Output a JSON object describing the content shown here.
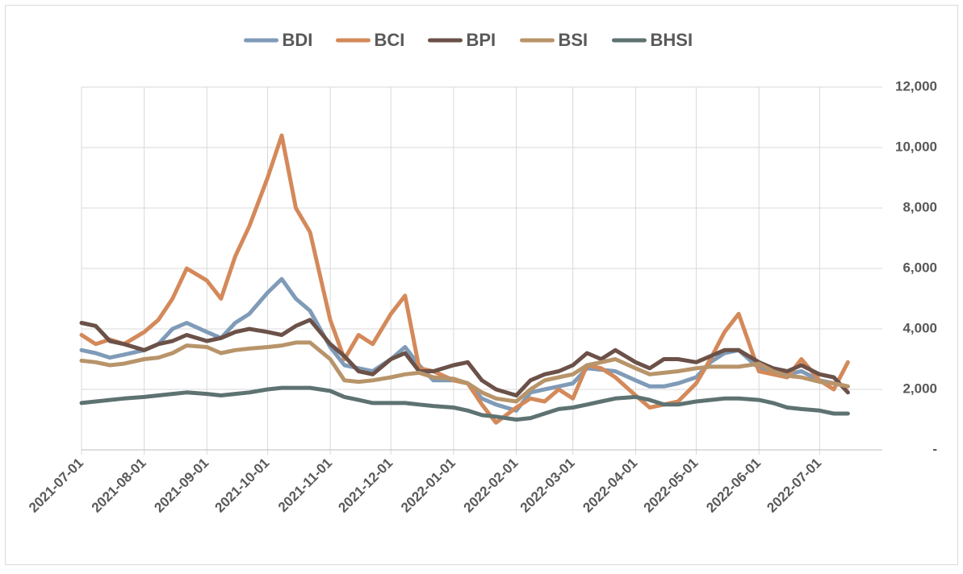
{
  "chart_data": {
    "type": "line",
    "x": [
      "2021-07-01",
      "2021-07-08",
      "2021-07-15",
      "2021-07-22",
      "2021-08-01",
      "2021-08-08",
      "2021-08-15",
      "2021-08-22",
      "2021-09-01",
      "2021-09-08",
      "2021-09-15",
      "2021-09-22",
      "2021-10-01",
      "2021-10-08",
      "2021-10-15",
      "2021-10-22",
      "2021-11-01",
      "2021-11-08",
      "2021-11-15",
      "2021-11-22",
      "2021-12-01",
      "2021-12-08",
      "2021-12-15",
      "2021-12-22",
      "2022-01-01",
      "2022-01-08",
      "2022-01-15",
      "2022-01-22",
      "2022-02-01",
      "2022-02-08",
      "2022-02-15",
      "2022-02-22",
      "2022-03-01",
      "2022-03-08",
      "2022-03-15",
      "2022-03-22",
      "2022-04-01",
      "2022-04-08",
      "2022-04-15",
      "2022-04-22",
      "2022-05-01",
      "2022-05-08",
      "2022-05-15",
      "2022-05-22",
      "2022-06-01",
      "2022-06-08",
      "2022-06-15",
      "2022-06-22",
      "2022-07-01",
      "2022-07-08",
      "2022-07-15"
    ],
    "series": [
      {
        "name": "BDI",
        "color": "#7f9bb8",
        "values": [
          3300,
          3200,
          3050,
          3150,
          3300,
          3500,
          4000,
          4200,
          3900,
          3700,
          4200,
          4500,
          5200,
          5650,
          5000,
          4600,
          3400,
          2800,
          2700,
          2600,
          3000,
          3400,
          2800,
          2300,
          2300,
          2200,
          1700,
          1500,
          1300,
          1900,
          2000,
          2100,
          2200,
          2700,
          2650,
          2600,
          2300,
          2100,
          2100,
          2200,
          2400,
          2900,
          3200,
          3300,
          2700,
          2600,
          2500,
          2600,
          2300,
          2200,
          2100
        ]
      },
      {
        "name": "BCI",
        "color": "#d4895a",
        "values": [
          3800,
          3500,
          3650,
          3500,
          3900,
          4300,
          5000,
          6000,
          5600,
          5000,
          6400,
          7400,
          9000,
          10400,
          8000,
          7200,
          4300,
          3000,
          3800,
          3500,
          4500,
          5100,
          2700,
          2600,
          2300,
          2200,
          1500,
          900,
          1400,
          1700,
          1600,
          2000,
          1700,
          2800,
          2700,
          2400,
          1800,
          1400,
          1500,
          1600,
          2200,
          3000,
          3900,
          4500,
          2600,
          2500,
          2400,
          3000,
          2300,
          2000,
          2900
        ]
      },
      {
        "name": "BPI",
        "color": "#6b5148",
        "values": [
          4200,
          4100,
          3600,
          3500,
          3300,
          3500,
          3600,
          3800,
          3600,
          3700,
          3900,
          4000,
          3900,
          3800,
          4100,
          4300,
          3500,
          3100,
          2600,
          2500,
          3000,
          3200,
          2600,
          2600,
          2800,
          2900,
          2300,
          2000,
          1800,
          2300,
          2500,
          2600,
          2800,
          3200,
          3000,
          3300,
          2900,
          2700,
          3000,
          3000,
          2900,
          3100,
          3300,
          3300,
          2900,
          2700,
          2600,
          2800,
          2500,
          2400,
          1900
        ]
      },
      {
        "name": "BSI",
        "color": "#b8946a",
        "values": [
          2950,
          2900,
          2800,
          2850,
          3000,
          3050,
          3200,
          3450,
          3400,
          3200,
          3300,
          3350,
          3400,
          3450,
          3550,
          3550,
          3000,
          2300,
          2250,
          2300,
          2400,
          2500,
          2550,
          2400,
          2350,
          2200,
          1900,
          1700,
          1600,
          2000,
          2300,
          2400,
          2500,
          2800,
          2900,
          3000,
          2700,
          2500,
          2550,
          2600,
          2700,
          2750,
          2750,
          2750,
          2850,
          2600,
          2450,
          2400,
          2250,
          2200,
          2100
        ]
      },
      {
        "name": "BHSI",
        "color": "#5e7272",
        "values": [
          1550,
          1600,
          1650,
          1700,
          1750,
          1800,
          1850,
          1900,
          1850,
          1800,
          1850,
          1900,
          2000,
          2050,
          2050,
          2050,
          1950,
          1750,
          1650,
          1550,
          1550,
          1550,
          1500,
          1450,
          1400,
          1300,
          1150,
          1100,
          1000,
          1050,
          1200,
          1350,
          1400,
          1500,
          1600,
          1700,
          1750,
          1650,
          1500,
          1500,
          1600,
          1650,
          1700,
          1700,
          1650,
          1550,
          1400,
          1350,
          1300,
          1200,
          1200
        ]
      }
    ],
    "xlim": [
      "2021-07-01",
      "2022-08-01"
    ],
    "xticks": [
      "2021-07-01",
      "2021-08-01",
      "2021-09-01",
      "2021-10-01",
      "2021-11-01",
      "2021-12-01",
      "2022-01-01",
      "2022-02-01",
      "2022-03-01",
      "2022-04-01",
      "2022-05-01",
      "2022-06-01",
      "2022-07-01"
    ],
    "ylim": [
      0,
      12000
    ],
    "yticks": [
      {
        "value": 0,
        "label": "-"
      },
      {
        "value": 2000,
        "label": "2,000"
      },
      {
        "value": 4000,
        "label": "4,000"
      },
      {
        "value": 6000,
        "label": "6,000"
      },
      {
        "value": 8000,
        "label": "8,000"
      },
      {
        "value": 10000,
        "label": "10,000"
      },
      {
        "value": 12000,
        "label": "12,000"
      }
    ],
    "y_axis_side": "right",
    "grid": true,
    "legend": "top"
  }
}
